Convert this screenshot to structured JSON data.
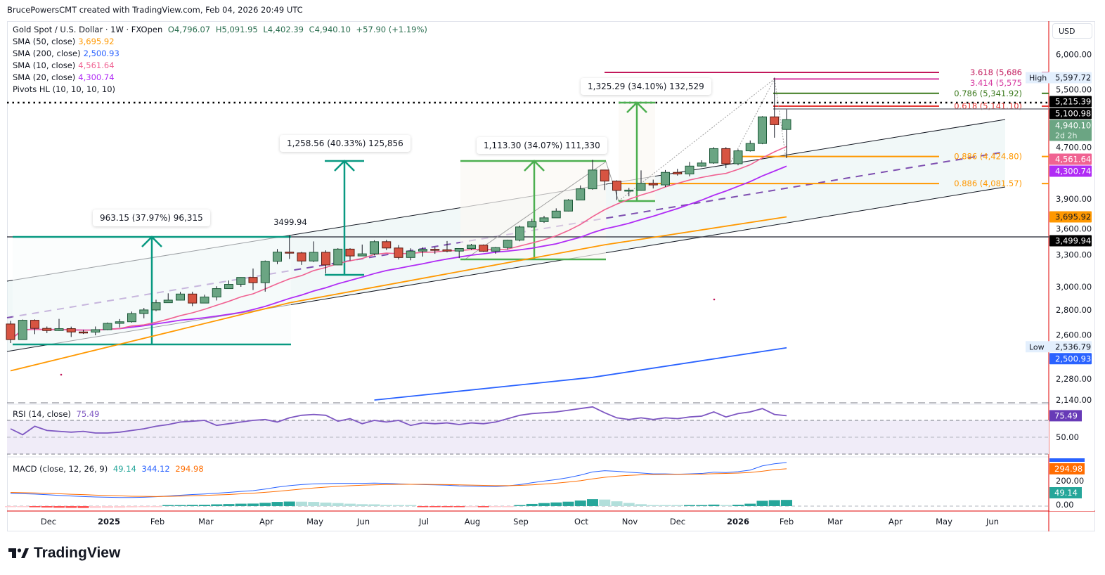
{
  "credit": "BrucePowersCMT created with TradingView.com, Feb 04, 2026 20:49 UTC",
  "symbol": {
    "title": "Gold Spot / U.S. Dollar · 1W · FXOpen",
    "open": "O4,796.07",
    "high": "H5,091.95",
    "low": "L4,402.39",
    "close": "C4,940.10",
    "change": "+57.90 (+1.19%)"
  },
  "indicators": [
    {
      "label": "SMA (50, close)",
      "value": "3,695.92",
      "color": "#ff9800"
    },
    {
      "label": "SMA (200, close)",
      "value": "2,500.93",
      "color": "#2962ff"
    },
    {
      "label": "SMA (10, close)",
      "value": "4,561.64",
      "color": "#f06292"
    },
    {
      "label": "SMA (20, close)",
      "value": "4,300.74",
      "color": "#b02cf5"
    },
    {
      "label": "Pivots HL (10, 10, 10, 10)",
      "value": "",
      "color": "#131722"
    }
  ],
  "rsi_legend": {
    "label": "RSI (14, close)",
    "value": "75.49",
    "color": "#7e57c2"
  },
  "macd_legend": {
    "label": "MACD (close, 12, 26, 9)",
    "hist": "49.14",
    "macd": "344.12",
    "signal": "294.98",
    "hist_color": "#26a69a",
    "macd_color": "#2962ff",
    "signal_color": "#ff6d00"
  },
  "currency": "USD",
  "logo_text": "TradingView",
  "measurements": [
    {
      "text": "963.15 (37.97%) 96,315",
      "color": "#089981"
    },
    {
      "text": "1,258.56 (40.33%) 125,856",
      "color": "#089981"
    },
    {
      "text": "1,113.30 (34.07%) 111,330",
      "color": "#4caf50"
    },
    {
      "text": "1,325.29 (34.10%) 132,529",
      "color": "#4caf50"
    }
  ],
  "pivot_label": "3499.94",
  "fib_levels": [
    {
      "text": "3.618 (5,686",
      "price": 5686,
      "color": "#c2185b"
    },
    {
      "text": "3.414 (5,575",
      "price": 5575,
      "color": "#d63aa0"
    },
    {
      "text": "0.786 (5,341.92)",
      "price": 5341.92,
      "color": "#3c7a1e"
    },
    {
      "text": "0.618 (5,141.10)",
      "price": 5141.1,
      "color": "#e53935"
    },
    {
      "text": "0.886 (4,424.80)",
      "price": 4424.8,
      "color": "#ff9800"
    },
    {
      "text": "0.886 (4,081.57)",
      "price": 4081.57,
      "color": "#ff9800"
    }
  ],
  "price_axis": {
    "ticks": [
      "6,000.00",
      "5,500.00",
      "4,700.00",
      "3,900.00",
      "3,600.00",
      "3,300.00",
      "3,000.00",
      "2,800.00",
      "2,600.00",
      "2,280.00",
      "2,140.00"
    ],
    "tags": [
      {
        "text": "5,597.72",
        "price": 5597.72,
        "bg": "#e3effd",
        "fg": "#131722",
        "side_label": "High"
      },
      {
        "text": "5,215.39",
        "price": 5215.39,
        "bg": "#000000",
        "fg": "#ffffff"
      },
      {
        "text": "5,100.98",
        "price": 5100.98,
        "bg": "#000000",
        "fg": "#ffffff"
      },
      {
        "text": "4,940.10",
        "price": 4940.1,
        "bg": "#6ba583",
        "fg": "#ffffff",
        "sub": "2d 2h"
      },
      {
        "text": "4,561.64",
        "price": 4561.64,
        "bg": "#f06292",
        "fg": "#ffffff"
      },
      {
        "text": "4,300.74",
        "price": 4300.74,
        "bg": "#b02cf5",
        "fg": "#ffffff"
      },
      {
        "text": "3,695.92",
        "price": 3695.92,
        "bg": "#ff9800",
        "fg": "#131722"
      },
      {
        "text": "3,499.94",
        "price": 3499.94,
        "bg": "#000000",
        "fg": "#ffffff"
      },
      {
        "text": "2,536.79",
        "price": 2536.79,
        "bg": "#e3effd",
        "fg": "#131722",
        "side_label": "Low"
      },
      {
        "text": "2,500.93",
        "price": 2500.93,
        "bg": "#2962ff",
        "fg": "#ffffff"
      }
    ]
  },
  "rsi_axis": {
    "ticks": [
      "50.00"
    ],
    "tag": {
      "text": "75.49",
      "bg": "#673ab7"
    }
  },
  "macd_axis": {
    "ticks": [
      "200.00",
      "0.00"
    ],
    "tags": [
      {
        "text": "294.98",
        "bg": "#ff6d00"
      },
      {
        "text": "49.14",
        "bg": "#26a69a"
      }
    ]
  },
  "time_axis": [
    {
      "label": "Dec",
      "bold": false
    },
    {
      "label": "2025",
      "bold": true
    },
    {
      "label": "Feb",
      "bold": false
    },
    {
      "label": "Mar",
      "bold": false
    },
    {
      "label": "Apr",
      "bold": false
    },
    {
      "label": "May",
      "bold": false
    },
    {
      "label": "Jun",
      "bold": false
    },
    {
      "label": "Jul",
      "bold": false
    },
    {
      "label": "Aug",
      "bold": false
    },
    {
      "label": "Sep",
      "bold": false
    },
    {
      "label": "Oct",
      "bold": false
    },
    {
      "label": "Nov",
      "bold": false
    },
    {
      "label": "Dec",
      "bold": false
    },
    {
      "label": "2026",
      "bold": true
    },
    {
      "label": "Feb",
      "bold": false
    },
    {
      "label": "Mar",
      "bold": false
    },
    {
      "label": "Apr",
      "bold": false
    },
    {
      "label": "May",
      "bold": false
    },
    {
      "label": "Jun",
      "bold": false
    }
  ],
  "chart_data": {
    "type": "candlestick",
    "scale": "log",
    "interval": "1W",
    "first_week": "2024-11-11",
    "last_week": "2026-02-02",
    "up_color": "#6ba583",
    "down_color": "#d75442",
    "ohlc": [
      [
        2685,
        2710,
        2537,
        2563
      ],
      [
        2563,
        2721,
        2563,
        2715
      ],
      [
        2715,
        2722,
        2605,
        2650
      ],
      [
        2650,
        2665,
        2613,
        2633
      ],
      [
        2633,
        2726,
        2630,
        2648
      ],
      [
        2648,
        2664,
        2583,
        2622
      ],
      [
        2622,
        2639,
        2606,
        2621
      ],
      [
        2621,
        2665,
        2596,
        2640
      ],
      [
        2640,
        2697,
        2636,
        2690
      ],
      [
        2690,
        2725,
        2657,
        2703
      ],
      [
        2703,
        2786,
        2696,
        2770
      ],
      [
        2770,
        2817,
        2731,
        2800
      ],
      [
        2800,
        2887,
        2790,
        2861
      ],
      [
        2861,
        2942,
        2860,
        2883
      ],
      [
        2883,
        2955,
        2880,
        2936
      ],
      [
        2936,
        2956,
        2832,
        2858
      ],
      [
        2858,
        2930,
        2857,
        2910
      ],
      [
        2910,
        3005,
        2880,
        2984
      ],
      [
        2984,
        3057,
        2982,
        3022
      ],
      [
        3022,
        3087,
        3000,
        3085
      ],
      [
        3085,
        3168,
        2971,
        3037
      ],
      [
        3037,
        3245,
        2957,
        3237
      ],
      [
        3237,
        3358,
        3210,
        3327
      ],
      [
        3327,
        3499.94,
        3260,
        3319
      ],
      [
        3319,
        3330,
        3202,
        3240
      ],
      [
        3240,
        3435,
        3230,
        3325
      ],
      [
        3325,
        3345,
        3121,
        3202
      ],
      [
        3202,
        3366,
        3200,
        3357
      ],
      [
        3357,
        3366,
        3245,
        3289
      ],
      [
        3289,
        3403,
        3290,
        3310
      ],
      [
        3310,
        3446,
        3294,
        3432
      ],
      [
        3432,
        3452,
        3347,
        3368
      ],
      [
        3368,
        3398,
        3255,
        3274
      ],
      [
        3274,
        3365,
        3247,
        3337
      ],
      [
        3337,
        3375,
        3283,
        3355
      ],
      [
        3355,
        3377,
        3310,
        3350
      ],
      [
        3350,
        3439,
        3325,
        3337
      ],
      [
        3337,
        3363,
        3268,
        3363
      ],
      [
        3363,
        3409,
        3350,
        3397
      ],
      [
        3397,
        3404,
        3330,
        3336
      ],
      [
        3336,
        3378,
        3311,
        3372
      ],
      [
        3372,
        3453,
        3352,
        3448
      ],
      [
        3448,
        3600,
        3436,
        3586
      ],
      [
        3586,
        3675,
        3578,
        3643
      ],
      [
        3643,
        3707,
        3630,
        3685
      ],
      [
        3685,
        3791,
        3685,
        3760
      ],
      [
        3760,
        3897,
        3756,
        3886
      ],
      [
        3886,
        4059,
        3886,
        4018
      ],
      [
        4018,
        4381,
        4008,
        4250
      ],
      [
        4250,
        4250,
        4004,
        4112
      ],
      [
        4112,
        4122,
        3887,
        4000
      ],
      [
        4000,
        4030,
        3930,
        4003
      ],
      [
        4000,
        4245,
        3997,
        4085
      ],
      [
        4085,
        4130,
        4022,
        4065
      ],
      [
        4065,
        4250,
        4040,
        4220
      ],
      [
        4220,
        4265,
        4180,
        4200
      ],
      [
        4200,
        4353,
        4170,
        4300
      ],
      [
        4300,
        4375,
        4290,
        4340
      ],
      [
        4340,
        4550,
        4330,
        4530
      ],
      [
        4530,
        4550,
        4275,
        4330
      ],
      [
        4330,
        4520,
        4310,
        4500
      ],
      [
        4500,
        4642,
        4490,
        4600
      ],
      [
        4600,
        4990,
        4590,
        4980
      ],
      [
        4980,
        5597.72,
        4680,
        4865
      ],
      [
        4796.07,
        5091.95,
        4402.39,
        4940.1
      ]
    ],
    "sma50": [
      [
        "2024-11-11",
        2335
      ],
      [
        "2025-04-21",
        2860
      ],
      [
        "2025-10-20",
        3400
      ],
      [
        "2026-02-02",
        3695.92
      ]
    ],
    "sma200": [
      [
        "2025-06-09",
        2140
      ],
      [
        "2025-10-13",
        2290
      ],
      [
        "2026-02-02",
        2500.93
      ]
    ],
    "rsi": [
      60,
      53,
      63,
      58,
      57,
      56,
      57,
      55,
      55,
      56,
      58,
      60,
      63,
      65,
      68,
      69,
      70,
      64,
      66,
      68,
      70,
      71,
      68,
      73,
      76,
      77,
      76,
      69,
      72,
      66,
      70,
      68,
      70,
      64,
      67,
      66,
      67,
      65,
      67,
      66,
      68,
      72,
      76,
      78,
      79,
      80,
      82,
      84,
      86,
      79,
      73,
      71,
      73,
      71,
      73,
      72,
      74,
      75,
      80,
      74,
      78,
      80,
      84,
      77,
      75.49
    ],
    "rsi_levels": [
      70,
      50,
      30
    ],
    "macd": [
      100,
      98,
      95,
      90,
      85,
      80,
      76,
      72,
      70,
      68,
      68,
      70,
      74,
      80,
      86,
      92,
      96,
      102,
      108,
      116,
      122,
      135,
      150,
      162,
      170,
      176,
      178,
      180,
      180,
      180,
      182,
      180,
      176,
      172,
      170,
      168,
      165,
      160,
      158,
      155,
      155,
      160,
      170,
      185,
      198,
      210,
      225,
      245,
      270,
      280,
      275,
      268,
      262,
      255,
      255,
      252,
      255,
      258,
      268,
      265,
      272,
      285,
      318,
      335,
      344.12
    ],
    "signal": [
      108,
      106,
      104,
      101,
      98,
      94,
      91,
      87,
      84,
      81,
      78,
      77,
      76,
      77,
      79,
      82,
      85,
      88,
      92,
      97,
      102,
      109,
      117,
      126,
      135,
      143,
      150,
      156,
      161,
      165,
      168,
      171,
      172,
      172,
      172,
      171,
      170,
      168,
      166,
      164,
      162,
      162,
      164,
      168,
      174,
      181,
      190,
      201,
      215,
      228,
      237,
      243,
      247,
      249,
      251,
      251,
      252,
      253,
      256,
      258,
      261,
      266,
      276,
      288,
      294.98
    ]
  }
}
